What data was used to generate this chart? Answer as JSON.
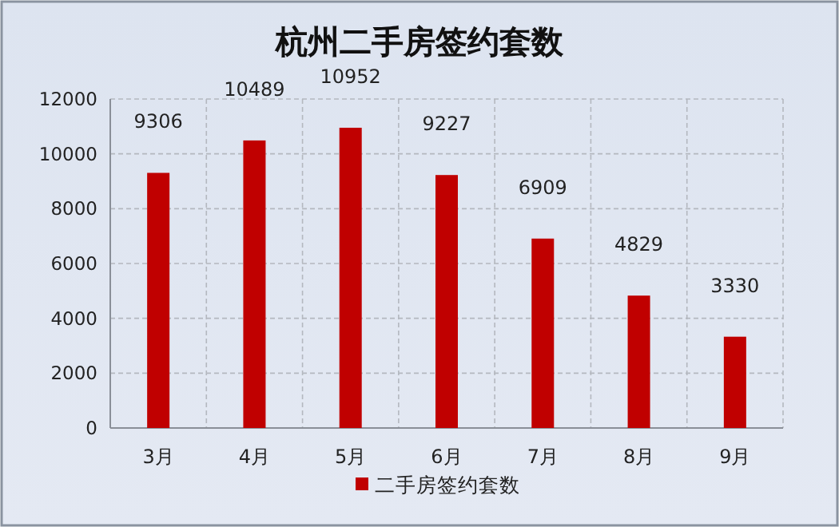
{
  "chart_data": {
    "type": "bar",
    "title": "杭州二手房签约套数",
    "categories": [
      "3月",
      "4月",
      "5月",
      "6月",
      "7月",
      "8月",
      "9月"
    ],
    "series": [
      {
        "name": "二手房签约套数",
        "color": "#c00000",
        "values": [
          9306,
          10489,
          10952,
          9227,
          6909,
          4829,
          3330
        ]
      }
    ],
    "ylim": [
      0,
      12000
    ],
    "yticks": [
      0,
      2000,
      4000,
      6000,
      8000,
      10000,
      12000
    ],
    "grid": true,
    "data_labels": true,
    "legend": "bottom"
  }
}
